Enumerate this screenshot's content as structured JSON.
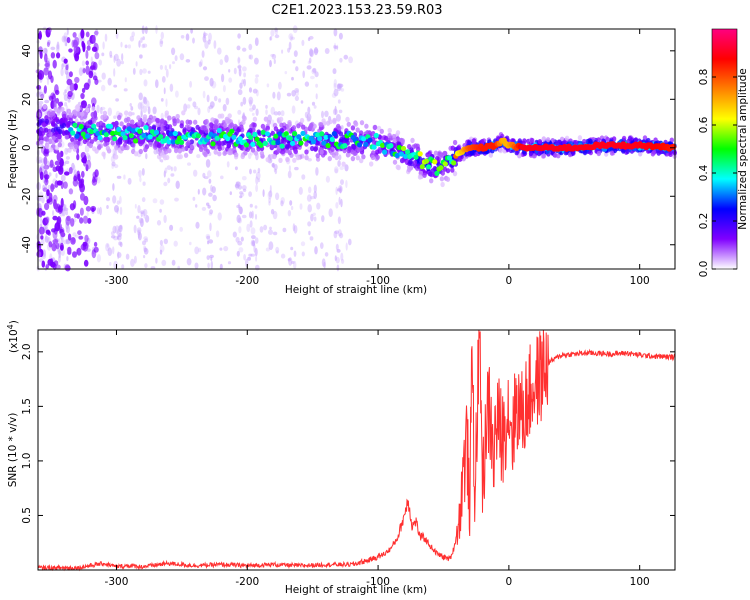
{
  "title": "C2E1.2023.153.23.59.R03",
  "chart_data": [
    {
      "type": "heatmap",
      "xlabel": "Height of straight line (km)",
      "ylabel": "Frequency (Hz)",
      "xlim": [
        -360,
        127
      ],
      "ylim": [
        -50,
        49
      ],
      "xticks": [
        -300,
        -200,
        -100,
        0,
        100
      ],
      "xtick_labels": [
        "-300",
        "-200",
        "-100",
        "0",
        "100"
      ],
      "yticks": [
        -40,
        -20,
        0,
        20,
        40
      ],
      "ytick_labels": [
        "-40",
        "-20",
        "0",
        "20",
        "40"
      ],
      "colorbar": {
        "label": "Normalized spectral amplitude",
        "range": [
          0.0,
          1.0
        ],
        "ticks": [
          0.0,
          0.2,
          0.4,
          0.6,
          0.8
        ],
        "tick_labels": [
          "0.0",
          "0.2",
          "0.4",
          "0.6",
          "0.8"
        ],
        "colormap": [
          "#ffffff",
          "#8000ff",
          "#0000ff",
          "#00ffff",
          "#00ff00",
          "#ffff00",
          "#ff8000",
          "#ff0000",
          "#ff0080"
        ]
      },
      "ridge": {
        "x": [
          -360,
          -340,
          -320,
          -300,
          -250,
          -200,
          -150,
          -120,
          -100,
          -80,
          -65,
          -55,
          -48,
          -40,
          -30,
          -20,
          -10,
          -5,
          0,
          10,
          50,
          70,
          100,
          127
        ],
        "frequency": [
          9,
          8,
          7,
          6,
          5,
          4,
          3,
          3,
          2,
          -2,
          -6,
          -8,
          -7,
          -3,
          0,
          0,
          1,
          3,
          1,
          0,
          0,
          1,
          1,
          0
        ],
        "amplitude": [
          0.4,
          0.4,
          0.4,
          0.4,
          0.4,
          0.4,
          0.4,
          0.4,
          0.4,
          0.45,
          0.5,
          0.5,
          0.5,
          0.6,
          0.8,
          0.85,
          0.85,
          0.7,
          0.7,
          0.9,
          0.9,
          0.9,
          0.9,
          0.85
        ]
      },
      "grid": false
    },
    {
      "type": "line",
      "xlabel": "Height of straight line (km)",
      "ylabel": "SNR (10 * v/v)",
      "multiplier_label": "(x10",
      "multiplier_exp": "4",
      "multiplier_close": ")",
      "xlim": [
        -360,
        127
      ],
      "ylim": [
        0,
        2.2
      ],
      "xticks": [
        -300,
        -200,
        -100,
        0,
        100
      ],
      "xtick_labels": [
        "-300",
        "-200",
        "-100",
        "0",
        "100"
      ],
      "yticks": [
        0.5,
        1.0,
        1.5,
        2.0
      ],
      "ytick_labels": [
        "0.5",
        "1.0",
        "1.5",
        "2.0"
      ],
      "color": "#ff3030",
      "series": [
        {
          "x": [
            -360,
            -330,
            -310,
            -300,
            -290,
            -280,
            -260,
            -240,
            -220,
            -200,
            -180,
            -160,
            -140,
            -120,
            -110,
            -100,
            -95,
            -90,
            -85,
            -80,
            -77,
            -74,
            -71,
            -68,
            -65,
            -60,
            -55,
            -50,
            -45,
            -42,
            -38,
            -35,
            -32,
            -30,
            -28,
            -26,
            -24,
            -22,
            -20,
            -18,
            -15,
            -12,
            -10,
            -8,
            -5,
            -2,
            0,
            3,
            6,
            10,
            15,
            20,
            25,
            30,
            40,
            60,
            80,
            90,
            100,
            110,
            127
          ],
          "y": [
            0.02,
            0.02,
            0.06,
            0.03,
            0.04,
            0.03,
            0.06,
            0.04,
            0.05,
            0.04,
            0.05,
            0.04,
            0.05,
            0.05,
            0.08,
            0.12,
            0.15,
            0.2,
            0.3,
            0.5,
            0.65,
            0.4,
            0.45,
            0.3,
            0.3,
            0.22,
            0.15,
            0.12,
            0.1,
            0.2,
            0.45,
            0.9,
            1.2,
            0.5,
            2.0,
            0.6,
            1.6,
            2.1,
            0.7,
            1.3,
            1.5,
            1.0,
            1.3,
            1.35,
            1.2,
            1.4,
            1.5,
            1.25,
            1.55,
            1.4,
            1.6,
            1.7,
            1.8,
            1.9,
            1.97,
            1.99,
            1.98,
            1.99,
            1.97,
            1.96,
            1.95
          ]
        }
      ],
      "grid": false
    }
  ]
}
